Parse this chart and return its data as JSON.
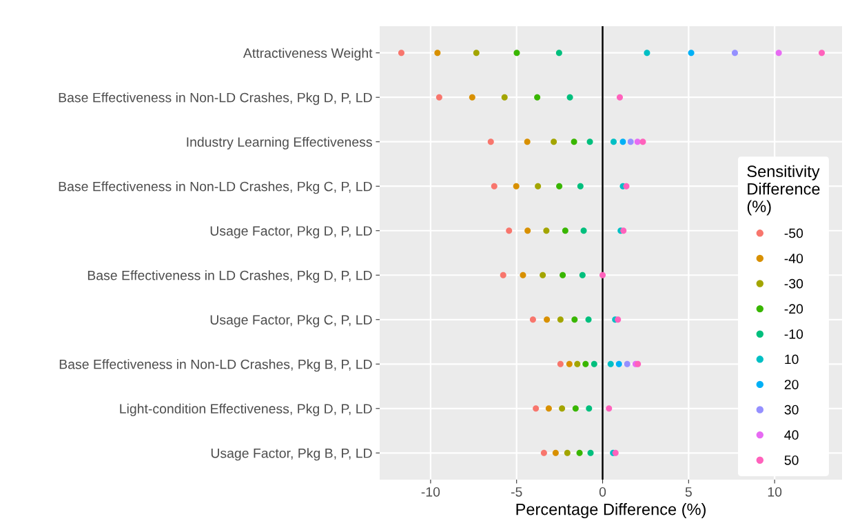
{
  "chart_data": {
    "type": "scatter",
    "orientation": "horizontal",
    "xlabel": "Percentage Difference (%)",
    "legend_title": "Sensitivity\nDifference\n(%)",
    "categories": [
      "Attractiveness Weight",
      "Base Effectiveness in Non-LD Crashes, Pkg D, P, LD",
      "Industry Learning Effectiveness",
      "Base Effectiveness in Non-LD Crashes, Pkg C, P, LD",
      "Usage Factor, Pkg D, P, LD",
      "Base Effectiveness in LD Crashes, Pkg D, P, LD",
      "Usage Factor, Pkg C, P, LD",
      "Base Effectiveness in Non-LD Crashes, Pkg B, P, LD",
      "Light-condition Effectiveness, Pkg D, P, LD",
      "Usage Factor, Pkg B, P, LD"
    ],
    "series": [
      {
        "name": "-50",
        "color": "#f8766d",
        "values": [
          -11.7,
          -9.5,
          -6.5,
          -6.3,
          -5.44,
          -5.78,
          -4.05,
          -2.45,
          -3.88,
          -3.41
        ]
      },
      {
        "name": "-40",
        "color": "#d89000",
        "values": [
          -9.6,
          -7.58,
          -4.38,
          -5.02,
          -4.36,
          -4.63,
          -3.24,
          -1.93,
          -3.13,
          -2.73
        ]
      },
      {
        "name": "-30",
        "color": "#a3a500",
        "values": [
          -7.34,
          -5.7,
          -2.84,
          -3.76,
          -3.27,
          -3.48,
          -2.45,
          -1.47,
          -2.36,
          -2.05
        ]
      },
      {
        "name": "-20",
        "color": "#39b600",
        "values": [
          -4.99,
          -3.8,
          -1.66,
          -2.52,
          -2.17,
          -2.32,
          -1.63,
          -0.99,
          -1.57,
          -1.34
        ]
      },
      {
        "name": "-10",
        "color": "#00bf7d",
        "values": [
          -2.53,
          -1.9,
          -0.74,
          -1.29,
          -1.1,
          -1.17,
          -0.82,
          -0.49,
          -0.79,
          -0.7
        ]
      },
      {
        "name": "10",
        "color": "#00bfc4",
        "values": [
          2.58,
          null,
          0.64,
          1.18,
          1.05,
          null,
          0.73,
          0.47,
          null,
          0.61
        ]
      },
      {
        "name": "20",
        "color": "#00b0f6",
        "values": [
          5.15,
          null,
          1.18,
          null,
          null,
          null,
          null,
          0.95,
          null,
          null
        ]
      },
      {
        "name": "30",
        "color": "#9590ff",
        "values": [
          7.69,
          null,
          1.63,
          null,
          null,
          null,
          null,
          1.43,
          null,
          null
        ]
      },
      {
        "name": "40",
        "color": "#e76bf3",
        "values": [
          10.24,
          null,
          2.03,
          null,
          null,
          null,
          null,
          1.92,
          null,
          null
        ]
      },
      {
        "name": "50",
        "color": "#ff62bc",
        "values": [
          12.74,
          1.0,
          2.34,
          1.38,
          1.21,
          0.0,
          0.89,
          2.05,
          0.37,
          0.75
        ]
      }
    ],
    "xlim": [
      -12.96,
      13.92
    ],
    "xticks": [
      -10,
      -5,
      0,
      5,
      10
    ],
    "ref_lines": [
      {
        "axis": "x",
        "value": 0,
        "color": "#000000"
      }
    ],
    "grid": true,
    "legend": "right",
    "marker": "circle"
  }
}
